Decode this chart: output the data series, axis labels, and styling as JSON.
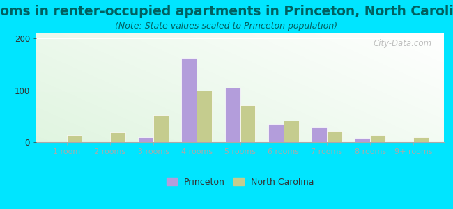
{
  "title": "Rooms in renter-occupied apartments in Princeton, North Carolina",
  "subtitle": "(Note: State values scaled to Princeton population)",
  "categories": [
    "1 room",
    "2 rooms",
    "3 rooms",
    "4 rooms",
    "5 rooms",
    "6 rooms",
    "7 rooms",
    "8 rooms",
    "9+ rooms"
  ],
  "princeton_values": [
    0,
    0,
    10,
    163,
    105,
    35,
    28,
    8,
    0
  ],
  "nc_values": [
    14,
    19,
    52,
    100,
    72,
    42,
    21,
    14,
    10
  ],
  "princeton_color": "#b39ddb",
  "nc_color": "#c5cc8e",
  "background_color": "#00e5ff",
  "ylim": [
    0,
    210
  ],
  "yticks": [
    0,
    100,
    200
  ],
  "title_fontsize": 13.5,
  "subtitle_fontsize": 9,
  "legend_labels": [
    "Princeton",
    "North Carolina"
  ],
  "watermark": "City-Data.com",
  "title_color": "#006060",
  "subtitle_color": "#006060",
  "tick_color": "#333333",
  "bar_edgecolor": "white",
  "bar_linewidth": 0.5
}
